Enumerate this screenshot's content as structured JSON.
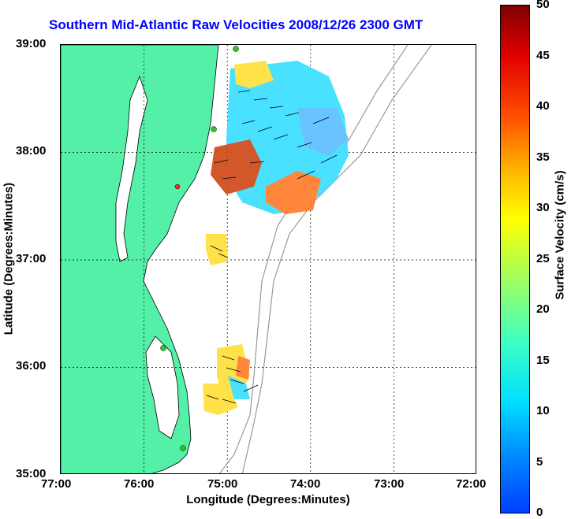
{
  "title": "Southern Mid-Atlantic Raw Velocities 2008/12/26 2300 GMT",
  "xlabel": "Longitude (Degrees:Minutes)",
  "ylabel": "Latitude (Degrees:Minutes)",
  "colorbar": {
    "label": "Surface Velocity (cm/s)",
    "ticks": [
      "0",
      "5",
      "10",
      "15",
      "20",
      "25",
      "30",
      "35",
      "40",
      "45",
      "50"
    ],
    "range": [
      0,
      50
    ]
  },
  "axes": {
    "xticks": [
      "77:00",
      "76:00",
      "75:00",
      "74:00",
      "73:00",
      "72:00"
    ],
    "yticks": [
      "39:00",
      "38:00",
      "37:00",
      "36:00",
      "35:00"
    ],
    "xlim": [
      -77,
      -72
    ],
    "ylim": [
      35,
      39
    ]
  },
  "colors": {
    "land": "#55f0a8",
    "title": "#0000ff"
  }
}
